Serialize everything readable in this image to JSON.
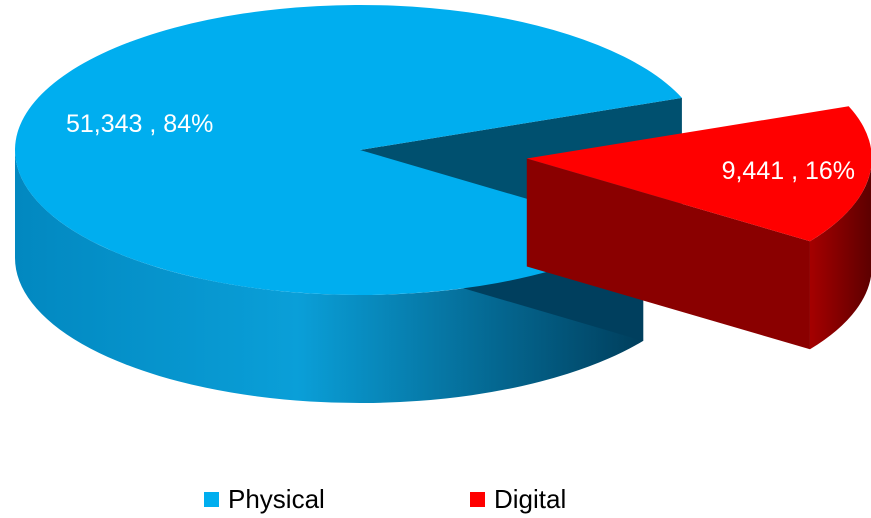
{
  "chart_data": {
    "type": "pie",
    "style": "3d-exploded",
    "title": "",
    "slices": [
      {
        "name": "Physical",
        "value": 51343,
        "value_label": "51,343",
        "percent": 84,
        "percent_label": "84%",
        "color": "#00aeef",
        "exploded": false
      },
      {
        "name": "Digital",
        "value": 9441,
        "value_label": "9,441",
        "percent": 16,
        "percent_label": "16%",
        "color": "#ff0000",
        "exploded": true
      }
    ],
    "label_separator": " , ",
    "data_label_color": "#ffffff",
    "legend": {
      "placement": "bottom",
      "entries": [
        "Physical",
        "Digital"
      ]
    }
  }
}
